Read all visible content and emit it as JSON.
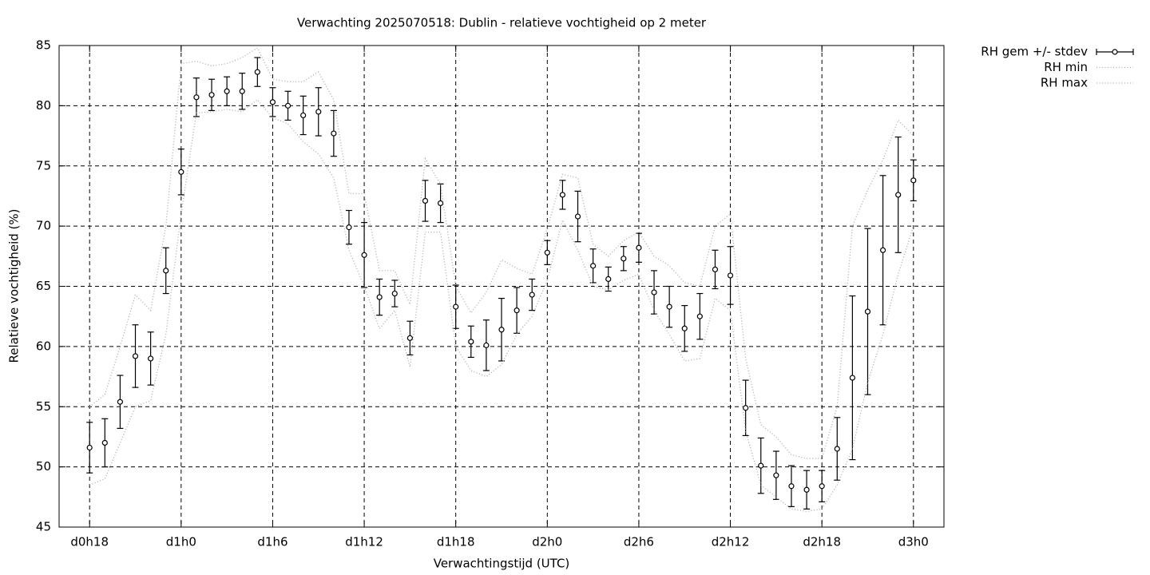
{
  "chart_data": {
    "type": "line",
    "title": "Verwachting 2025070518: Dublin - relatieve vochtigheid op 2 meter",
    "xlabel": "Verwachtingstijd (UTC)",
    "ylabel": "Relatieve vochtigheid (%)",
    "x": [
      18,
      19,
      20,
      21,
      22,
      23,
      24,
      25,
      26,
      27,
      28,
      29,
      30,
      31,
      32,
      33,
      34,
      35,
      36,
      37,
      38,
      39,
      40,
      41,
      42,
      43,
      44,
      45,
      46,
      47,
      48,
      49,
      50,
      51,
      52,
      53,
      54,
      55,
      56,
      57,
      58,
      59,
      60,
      61,
      62,
      63,
      64,
      65,
      66,
      67,
      68,
      69,
      70,
      71,
      72
    ],
    "series": [
      {
        "name": "RH gem +/- stdev",
        "color": "#000000",
        "style": "errorbars",
        "values": [
          51.6,
          52.0,
          55.4,
          59.2,
          59.0,
          66.3,
          74.5,
          80.7,
          80.9,
          81.2,
          81.2,
          82.8,
          80.3,
          80.0,
          79.2,
          79.5,
          77.7,
          69.9,
          67.6,
          64.1,
          64.4,
          60.7,
          72.1,
          71.9,
          63.3,
          60.4,
          60.1,
          61.4,
          63.0,
          64.3,
          67.8,
          72.6,
          70.8,
          66.7,
          65.6,
          67.3,
          68.2,
          64.5,
          63.3,
          61.5,
          62.5,
          66.4,
          65.9,
          54.9,
          50.1,
          49.3,
          48.4,
          48.1,
          48.4,
          51.5,
          57.4,
          62.9,
          68.0,
          72.6,
          73.8
        ],
        "errors": [
          2.1,
          2.0,
          2.2,
          2.6,
          2.2,
          1.9,
          1.9,
          1.6,
          1.3,
          1.2,
          1.5,
          1.2,
          1.2,
          1.2,
          1.6,
          2.0,
          1.9,
          1.4,
          2.7,
          1.5,
          1.1,
          1.4,
          1.7,
          1.6,
          1.8,
          1.3,
          2.1,
          2.6,
          1.9,
          1.3,
          1.0,
          1.2,
          2.1,
          1.4,
          1.0,
          1.0,
          1.2,
          1.8,
          1.7,
          1.9,
          1.9,
          1.6,
          2.4,
          2.3,
          2.3,
          2.0,
          1.7,
          1.6,
          1.3,
          2.6,
          6.8,
          6.9,
          6.2,
          4.8,
          1.7
        ]
      },
      {
        "name": "RH min",
        "color": "#aaaaaa",
        "style": "dotted",
        "values": [
          48.5,
          49.0,
          52,
          55,
          55.5,
          61,
          71,
          79.4,
          79.5,
          79.7,
          79.5,
          80.5,
          79,
          78.5,
          77,
          76,
          74,
          68,
          65,
          61.5,
          63,
          58.3,
          69.5,
          69.5,
          60,
          58,
          57.5,
          58.5,
          61,
          62.5,
          65.5,
          70.5,
          68,
          65,
          64.7,
          65.5,
          66,
          63,
          61,
          58.8,
          59,
          64,
          63,
          53,
          48.5,
          47.5,
          46.5,
          46.3,
          46.5,
          48.5,
          51.5,
          57,
          61,
          66,
          70
        ]
      },
      {
        "name": "RH max",
        "color": "#aaaaaa",
        "style": "dotted",
        "values": [
          55,
          56,
          60,
          64.3,
          63,
          70,
          83.5,
          83.7,
          83.3,
          83.5,
          84,
          84.8,
          82.2,
          82,
          82,
          82.8,
          80.5,
          72.7,
          72.7,
          66.3,
          66.3,
          63.5,
          75.6,
          73.5,
          65,
          62.8,
          64.5,
          67.2,
          66.5,
          66,
          69.8,
          74.3,
          74,
          68.5,
          67.5,
          68.8,
          69.5,
          67.5,
          66.7,
          65.3,
          65,
          70,
          71,
          59,
          53.5,
          52.5,
          51,
          50.7,
          50.7,
          55,
          70,
          73,
          75.5,
          78.8,
          77.5
        ]
      }
    ],
    "xlim": [
      16,
      74
    ],
    "xticks": [
      {
        "value": 18,
        "label": "d0h18"
      },
      {
        "value": 24,
        "label": "d1h0"
      },
      {
        "value": 30,
        "label": "d1h6"
      },
      {
        "value": 36,
        "label": "d1h12"
      },
      {
        "value": 42,
        "label": "d1h18"
      },
      {
        "value": 48,
        "label": "d2h0"
      },
      {
        "value": 54,
        "label": "d2h6"
      },
      {
        "value": 60,
        "label": "d2h12"
      },
      {
        "value": 66,
        "label": "d2h18"
      },
      {
        "value": 72,
        "label": "d3h0"
      }
    ],
    "ylim": [
      45,
      85
    ],
    "yticks": [
      45,
      50,
      55,
      60,
      65,
      70,
      75,
      80,
      85
    ],
    "grid": true,
    "legend": "outside-top-right"
  }
}
